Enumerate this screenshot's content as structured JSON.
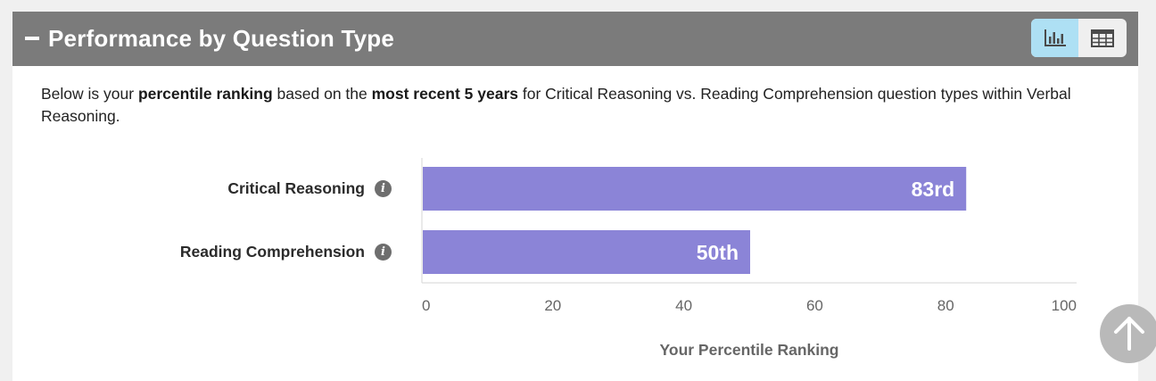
{
  "header": {
    "title": "Performance by Question Type",
    "view_toggle": {
      "chart_icon": "bar-chart-icon",
      "table_icon": "table-icon",
      "active": "chart"
    }
  },
  "intro": {
    "part1": "Below is your ",
    "bold1": "percentile ranking",
    "part2": " based on the ",
    "bold2": "most recent 5 years",
    "part3": " for Critical Reasoning vs. Reading Comprehension question types within Verbal Reasoning."
  },
  "chart_data": {
    "type": "bar",
    "orientation": "horizontal",
    "categories": [
      "Critical Reasoning",
      "Reading Comprehension"
    ],
    "values": [
      83,
      50
    ],
    "value_labels": [
      "83rd",
      "50th"
    ],
    "xlabel": "Your Percentile Ranking",
    "xlim": [
      0,
      100
    ],
    "xticks": [
      "0",
      "20",
      "40",
      "60",
      "80",
      "100"
    ],
    "bar_color": "#8b84d7",
    "grid": false
  },
  "colors": {
    "header_bg": "#7b7b7b",
    "toggle_active": "#aee0f4",
    "bar": "#8b84d7"
  }
}
